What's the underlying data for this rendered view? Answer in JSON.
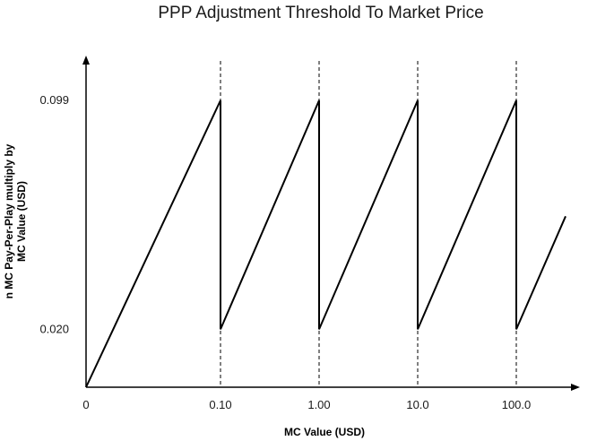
{
  "chart_data": {
    "type": "line",
    "title": "PPP Adjustment Threshold To Market Price",
    "xlabel": "MC Value (USD)",
    "ylabel_line1": "n MC Pay-Per-Play multiply by",
    "ylabel_line2": "MC Value (USD)",
    "x_scale": "log",
    "x_ticks": [
      "0",
      "0.10",
      "1.00",
      "10.0",
      "100.0"
    ],
    "y_ticks": [
      "0.099",
      "0.020"
    ],
    "y_tick_values": [
      0.099,
      0.02
    ],
    "ylim": [
      0,
      0.099
    ],
    "reference_lines": {
      "style": "dashed",
      "x_positions": [
        "0.10",
        "1.00",
        "10.0",
        "100.0"
      ]
    },
    "series": [
      {
        "points": [
          {
            "x": 0,
            "y": 0
          },
          {
            "x": 0.1,
            "y": 0.099
          },
          {
            "x": 0.1,
            "y": 0.02
          },
          {
            "x": 1.0,
            "y": 0.099
          },
          {
            "x": 1.0,
            "y": 0.02
          },
          {
            "x": 10.0,
            "y": 0.099
          },
          {
            "x": 10.0,
            "y": 0.02
          },
          {
            "x": 100.0,
            "y": 0.099
          },
          {
            "x": 100.0,
            "y": 0.02
          },
          {
            "x": 316.0,
            "y": 0.059
          }
        ]
      }
    ],
    "colors": {
      "line": "#000000",
      "axis": "#000000",
      "text": "#1a1a1a"
    }
  }
}
